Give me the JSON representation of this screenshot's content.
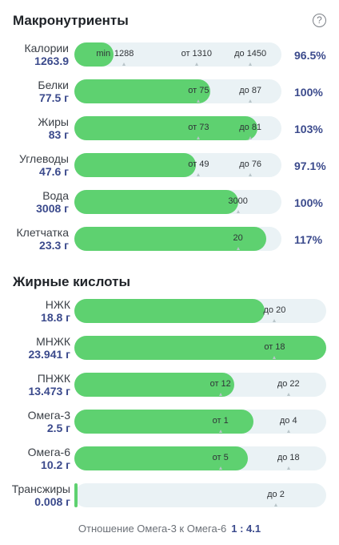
{
  "macro": {
    "title": "Макронутриенты",
    "help_symbol": "?",
    "rows": [
      {
        "name": "Калории",
        "value": "1263.9",
        "fill": 0.19,
        "pct": "96.5%",
        "marks": [
          {
            "text": "min",
            "x": 0.14,
            "tick": false
          },
          {
            "text": "1288",
            "x": 0.24,
            "tick": true
          },
          {
            "text": "от 1310",
            "x": 0.59,
            "tick": true
          },
          {
            "text": "до 1450",
            "x": 0.85,
            "tick": true
          }
        ]
      },
      {
        "name": "Белки",
        "value": "77.5 г",
        "fill": 0.655,
        "pct": "100%",
        "marks": [
          {
            "text": "от 75",
            "x": 0.6,
            "tick": true
          },
          {
            "text": "до 87",
            "x": 0.85,
            "tick": true
          }
        ]
      },
      {
        "name": "Жиры",
        "value": "83 г",
        "fill": 0.885,
        "pct": "103%",
        "marks": [
          {
            "text": "от 73",
            "x": 0.6,
            "tick": true
          },
          {
            "text": "до 81",
            "x": 0.85,
            "tick": true
          }
        ]
      },
      {
        "name": "Углеводы",
        "value": "47.6 г",
        "fill": 0.585,
        "pct": "97.1%",
        "marks": [
          {
            "text": "от 49",
            "x": 0.6,
            "tick": true
          },
          {
            "text": "до 76",
            "x": 0.85,
            "tick": true
          }
        ]
      },
      {
        "name": "Вода",
        "value": "3008 г",
        "fill": 0.79,
        "pct": "100%",
        "marks": [
          {
            "text": "3000",
            "x": 0.79,
            "tick": true
          }
        ]
      },
      {
        "name": "Клетчатка",
        "value": "23.3 г",
        "fill": 0.925,
        "pct": "117%",
        "marks": [
          {
            "text": "20",
            "x": 0.79,
            "tick": true
          }
        ]
      }
    ]
  },
  "fatty": {
    "title": "Жирные кислоты",
    "rows": [
      {
        "name": "НЖК",
        "value": "18.8 г",
        "fill": 0.755,
        "marks": [
          {
            "text": "до 20",
            "x": 0.795,
            "tick": true
          }
        ]
      },
      {
        "name": "МНЖК",
        "value": "23.941 г",
        "fill": 1.0,
        "marks": [
          {
            "text": "от 18",
            "x": 0.795,
            "tick": true
          }
        ]
      },
      {
        "name": "ПНЖК",
        "value": "13.473 г",
        "fill": 0.635,
        "marks": [
          {
            "text": "от 12",
            "x": 0.58,
            "tick": true
          },
          {
            "text": "до 22",
            "x": 0.85,
            "tick": true
          }
        ]
      },
      {
        "name": "Омега-3",
        "value": "2.5 г",
        "fill": 0.71,
        "marks": [
          {
            "text": "от 1",
            "x": 0.58,
            "tick": true
          },
          {
            "text": "до 4",
            "x": 0.85,
            "tick": true
          }
        ]
      },
      {
        "name": "Омега-6",
        "value": "10.2 г",
        "fill": 0.69,
        "marks": [
          {
            "text": "от 5",
            "x": 0.58,
            "tick": true
          },
          {
            "text": "до 18",
            "x": 0.85,
            "tick": true
          }
        ]
      },
      {
        "name": "Трансжиры",
        "value": "0.008 г",
        "fill": 0.012,
        "marks": [
          {
            "text": "до 2",
            "x": 0.8,
            "tick": true
          }
        ]
      }
    ]
  },
  "ratio": {
    "label": "Отношение Омега-3 к Омега-6",
    "value": "1 : 4.1"
  },
  "colors": {
    "fill": "#5ed170",
    "track": "#eaf2f5",
    "accent": "#3b4a8c"
  }
}
